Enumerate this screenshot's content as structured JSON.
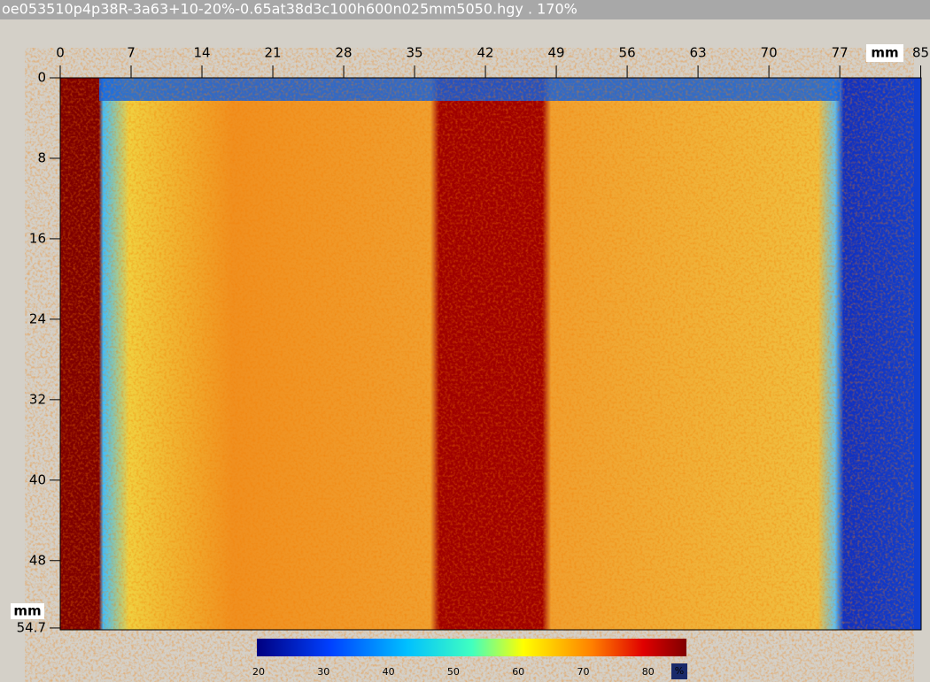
{
  "window_title": "oe053510p4p38R-3a63+10-20%-0.65at38d3c100h600n025mm5050.hgy . 170%",
  "x_axis": {
    "ticks": [
      0,
      7,
      14,
      21,
      28,
      35,
      42,
      49,
      56,
      63,
      70,
      77,
      85
    ],
    "unit": "mm"
  },
  "y_axis": {
    "ticks": [
      0,
      8,
      16,
      24,
      32,
      40,
      48,
      54.7
    ],
    "unit": "mm"
  },
  "colorbar": {
    "ticks": [
      20,
      30,
      40,
      50,
      60,
      70,
      80
    ],
    "unit": "%"
  }
}
